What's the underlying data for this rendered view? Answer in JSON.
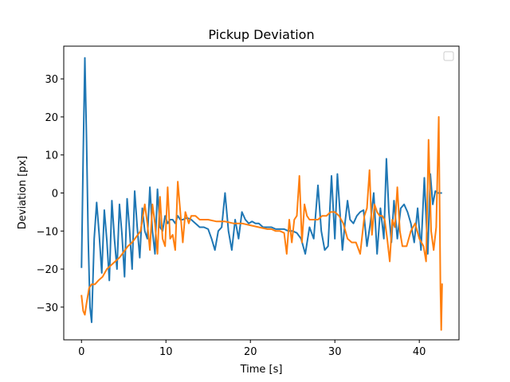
{
  "chart_data": {
    "type": "line",
    "title": "Pickup Deviation",
    "xlabel": "Time [s]",
    "ylabel": "Deviation [px]",
    "xlim": [
      -2.1,
      44.7
    ],
    "ylim": [
      -38.6,
      38.6
    ],
    "xticks": [
      0,
      10,
      20,
      30,
      40
    ],
    "yticks": [
      -30,
      -20,
      -10,
      0,
      10,
      20,
      30
    ],
    "grid": false,
    "legend": {
      "placement": "top-right",
      "entries": []
    },
    "series": [
      {
        "color": "#1f77b4",
        "x": [
          0.0,
          0.2,
          0.4,
          0.6,
          0.8,
          1.0,
          1.2,
          1.5,
          1.8,
          2.1,
          2.4,
          2.7,
          3.0,
          3.3,
          3.6,
          3.9,
          4.2,
          4.5,
          4.8,
          5.1,
          5.4,
          5.7,
          6.0,
          6.3,
          6.6,
          6.9,
          7.2,
          7.5,
          7.8,
          8.1,
          8.4,
          8.7,
          9.0,
          9.3,
          9.6,
          9.9,
          10.2,
          10.5,
          10.8,
          11.1,
          11.4,
          11.7,
          12.0,
          12.5,
          13.0,
          13.5,
          14.0,
          14.5,
          15.0,
          15.4,
          15.8,
          16.2,
          16.6,
          17.0,
          17.4,
          17.8,
          18.2,
          18.6,
          19.0,
          19.4,
          19.8,
          20.2,
          20.6,
          21.0,
          21.5,
          22.0,
          22.5,
          23.0,
          23.5,
          24.0,
          24.5,
          25.0,
          25.5,
          26.0,
          26.5,
          27.0,
          27.5,
          28.0,
          28.4,
          28.8,
          29.2,
          29.6,
          30.0,
          30.3,
          30.6,
          30.9,
          31.2,
          31.5,
          31.8,
          32.2,
          32.6,
          33.0,
          33.4,
          33.8,
          34.2,
          34.6,
          35.0,
          35.4,
          35.8,
          36.1,
          36.4,
          36.7,
          37.0,
          37.4,
          37.8,
          38.2,
          38.6,
          39.0,
          39.4,
          39.8,
          40.2,
          40.6,
          41.0,
          41.3,
          41.6,
          41.9,
          42.2,
          42.6
        ],
        "y": [
          -19.5,
          10,
          35.5,
          14,
          -12,
          -30,
          -34,
          -12,
          -2.5,
          -11,
          -21,
          -4.5,
          -12.5,
          -23,
          -2,
          -12,
          -20,
          -3,
          -11,
          -22,
          -1.5,
          -10,
          -20,
          0.5,
          -9,
          -17,
          -4,
          -10,
          -12,
          1.5,
          -10,
          -16,
          1,
          -9,
          -10,
          -6,
          -8,
          -7,
          -7,
          -8,
          -6,
          -7,
          -7,
          -6.5,
          -7,
          -8,
          -9,
          -9,
          -9.5,
          -12,
          -15,
          -10,
          -9,
          0,
          -10,
          -15,
          -7,
          -12,
          -5,
          -7,
          -8,
          -7.5,
          -8,
          -8,
          -9,
          -9,
          -9,
          -9.5,
          -9.5,
          -9.5,
          -10,
          -10,
          -10.5,
          -12,
          -16,
          -9,
          -12,
          2,
          -10,
          -15,
          -14,
          4.5,
          -12,
          5,
          -5,
          -15,
          -8,
          -2,
          -7,
          -8,
          -6,
          -5,
          -4.5,
          -14,
          -8,
          0,
          -16,
          -4,
          -12,
          9,
          -5,
          -13,
          -2,
          -12,
          -4,
          -3,
          -5,
          -8,
          -13,
          -4,
          -15,
          4,
          -16,
          5,
          -3,
          0.5,
          0,
          0
        ]
      },
      {
        "color": "#ff7f0e",
        "x": [
          0.0,
          0.2,
          0.4,
          0.6,
          0.9,
          1.2,
          1.6,
          2.0,
          2.5,
          3.0,
          3.5,
          4.0,
          4.5,
          5.0,
          5.5,
          6.0,
          6.5,
          7.0,
          7.5,
          7.8,
          8.1,
          8.4,
          8.7,
          9.0,
          9.3,
          9.6,
          9.9,
          10.2,
          10.5,
          10.8,
          11.1,
          11.4,
          11.7,
          12.0,
          12.3,
          12.7,
          13.0,
          13.5,
          14.0,
          14.5,
          15.0,
          16.0,
          17.0,
          18.0,
          19.0,
          20.0,
          21.0,
          22.0,
          22.5,
          23.0,
          23.5,
          24.0,
          24.3,
          24.6,
          24.9,
          25.2,
          25.5,
          25.8,
          26.1,
          26.4,
          26.7,
          27.0,
          27.5,
          28.0,
          28.5,
          29.0,
          29.5,
          30.0,
          30.5,
          31.0,
          31.5,
          32.0,
          32.5,
          33.0,
          33.5,
          33.8,
          34.1,
          34.4,
          34.7,
          35.0,
          35.3,
          35.6,
          35.9,
          36.2,
          36.5,
          36.8,
          37.1,
          37.4,
          37.7,
          38.0,
          38.5,
          39.0,
          39.5,
          40.0,
          40.5,
          40.8,
          41.1,
          41.4,
          41.7,
          42.0,
          42.3,
          42.5,
          42.6,
          42.7
        ],
        "y": [
          -27,
          -31,
          -32,
          -29,
          -25,
          -24,
          -24,
          -23,
          -22,
          -20,
          -19,
          -18,
          -17,
          -15.5,
          -14,
          -13,
          -11.5,
          -10,
          -3,
          -8,
          -15,
          -3,
          -8,
          -16,
          -1,
          -12,
          -14,
          1.5,
          -12,
          -11,
          -15,
          3,
          -5,
          -13,
          -5,
          -8,
          -6,
          -6,
          -7,
          -7,
          -7,
          -7.5,
          -7.5,
          -8,
          -8,
          -8.5,
          -9,
          -9.5,
          -9.5,
          -10,
          -10,
          -10.5,
          -16,
          -7,
          -13,
          -7,
          -6,
          4.5,
          -13,
          -3,
          -6,
          -7,
          -7,
          -7,
          -6,
          -6,
          -5,
          -5,
          -6,
          -8,
          -12,
          -13,
          -13,
          -16,
          -6,
          -4,
          6,
          -11,
          -3,
          -5,
          -6,
          -6,
          -7,
          -12,
          -18,
          -7,
          -9,
          1.5,
          -10,
          -14,
          -14,
          -10,
          -8,
          -12,
          -14,
          -18,
          14,
          -10,
          -15,
          -9,
          20,
          -25,
          -36,
          -24
        ]
      }
    ]
  }
}
